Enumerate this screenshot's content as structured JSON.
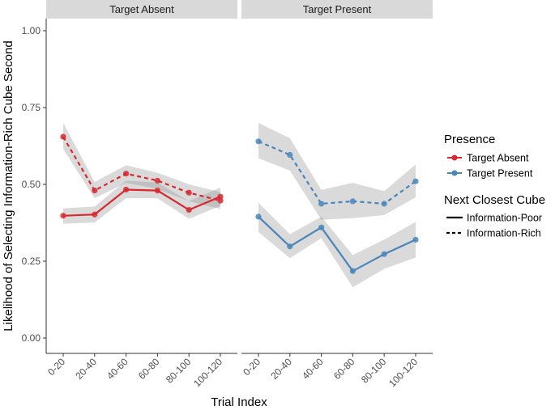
{
  "chart_data": {
    "type": "line",
    "xlabel": "Trial Index",
    "ylabel": "Likelihood of Selecting Information-Rich Cube Second",
    "ylim": [
      0,
      1
    ],
    "yticks": [
      "0.00",
      "0.25",
      "0.50",
      "0.75",
      "1.00"
    ],
    "categories": [
      "0-20",
      "20-40",
      "40-60",
      "60-80",
      "80-100",
      "100-120"
    ],
    "legend": {
      "color_title": "Presence",
      "color_items": [
        {
          "label": "Target Absent",
          "color": "#d7282f"
        },
        {
          "label": "Target Present",
          "color": "#4a86b9"
        }
      ],
      "linetype_title": "Next Closest Cube",
      "linetype_items": [
        {
          "label": "Information-Poor",
          "dash": "solid"
        },
        {
          "label": "Information-Rich",
          "dash": "dashed"
        }
      ]
    },
    "panels": [
      {
        "title": "Target Absent",
        "color": "#d7282f",
        "series": [
          {
            "name": "Information-Poor",
            "dash": "solid",
            "values": [
              0.398,
              0.402,
              0.483,
              0.48,
              0.417,
              0.46
            ],
            "lower": [
              0.372,
              0.376,
              0.455,
              0.455,
              0.388,
              0.43
            ],
            "upper": [
              0.422,
              0.428,
              0.512,
              0.506,
              0.445,
              0.49
            ]
          },
          {
            "name": "Information-Rich",
            "dash": "dashed",
            "values": [
              0.655,
              0.48,
              0.535,
              0.512,
              0.473,
              0.447
            ],
            "lower": [
              0.615,
              0.455,
              0.505,
              0.485,
              0.445,
              0.42
            ],
            "upper": [
              0.7,
              0.508,
              0.562,
              0.538,
              0.5,
              0.475
            ]
          }
        ]
      },
      {
        "title": "Target Present",
        "color": "#4a86b9",
        "series": [
          {
            "name": "Information-Poor",
            "dash": "solid",
            "values": [
              0.395,
              0.298,
              0.36,
              0.218,
              0.273,
              0.32
            ],
            "lower": [
              0.345,
              0.26,
              0.325,
              0.165,
              0.225,
              0.262
            ],
            "upper": [
              0.44,
              0.338,
              0.395,
              0.27,
              0.32,
              0.378
            ]
          },
          {
            "name": "Information-Rich",
            "dash": "dashed",
            "values": [
              0.64,
              0.596,
              0.437,
              0.445,
              0.437,
              0.51
            ],
            "lower": [
              0.585,
              0.545,
              0.385,
              0.39,
              0.4,
              0.458
            ],
            "upper": [
              0.7,
              0.65,
              0.482,
              0.505,
              0.478,
              0.565
            ]
          }
        ]
      }
    ]
  }
}
